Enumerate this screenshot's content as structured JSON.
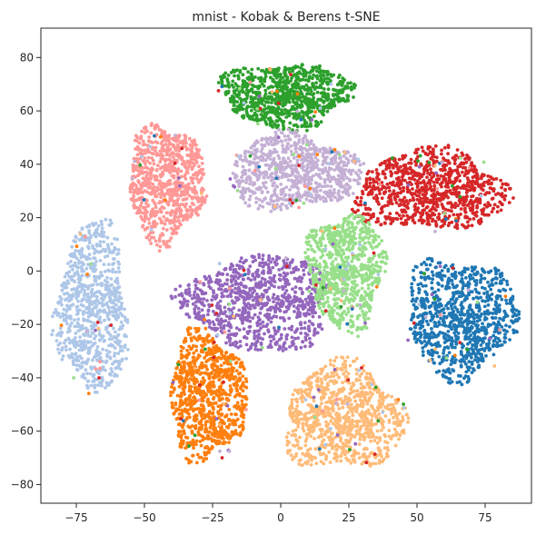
{
  "chart_data": {
    "type": "scatter",
    "title": "mnist - Kobak & Berens t-SNE",
    "xlabel": "",
    "ylabel": "",
    "xlim": [
      -88,
      92
    ],
    "ylim": [
      -87,
      91
    ],
    "xticks": [
      -75,
      -50,
      -25,
      0,
      25,
      50,
      75
    ],
    "xtick_labels": [
      "−75",
      "−50",
      "−25",
      "0",
      "25",
      "50",
      "75"
    ],
    "yticks": [
      -80,
      -60,
      -40,
      -20,
      0,
      20,
      40,
      60,
      80
    ],
    "ytick_labels": [
      "−80",
      "−60",
      "−40",
      "−20",
      "0",
      "20",
      "40",
      "60",
      "80"
    ],
    "grid": false,
    "legend": "none",
    "clusters": [
      {
        "color": "#2ca02c",
        "center": [
          2,
          66
        ],
        "spread": [
          24,
          12
        ],
        "count": 900
      },
      {
        "color": "#ff9896",
        "center": [
          -42,
          33
        ],
        "spread": [
          14,
          22
        ],
        "count": 800
      },
      {
        "color": "#c5b0d5",
        "center": [
          5,
          37
        ],
        "spread": [
          24,
          14
        ],
        "count": 800
      },
      {
        "color": "#d62728",
        "center": [
          55,
          30
        ],
        "spread": [
          28,
          15
        ],
        "count": 900
      },
      {
        "color": "#aec7e8",
        "center": [
          -69,
          -14
        ],
        "spread": [
          13,
          32
        ],
        "count": 800
      },
      {
        "color": "#9467bd",
        "center": [
          -8,
          -12
        ],
        "spread": [
          27,
          18
        ],
        "count": 900
      },
      {
        "color": "#98df8a",
        "center": [
          24,
          0
        ],
        "spread": [
          14,
          22
        ],
        "count": 800
      },
      {
        "color": "#1f77b4",
        "center": [
          66,
          -17
        ],
        "spread": [
          20,
          22
        ],
        "count": 900
      },
      {
        "color": "#ff7f0e",
        "center": [
          -27,
          -47
        ],
        "spread": [
          14,
          24
        ],
        "count": 900
      },
      {
        "color": "#ffbb78",
        "center": [
          23,
          -55
        ],
        "spread": [
          22,
          20
        ],
        "count": 900
      }
    ],
    "outlier_colors": [
      "#2ca02c",
      "#ff9896",
      "#c5b0d5",
      "#d62728",
      "#aec7e8",
      "#9467bd",
      "#98df8a",
      "#1f77b4",
      "#ff7f0e",
      "#ffbb78"
    ]
  }
}
